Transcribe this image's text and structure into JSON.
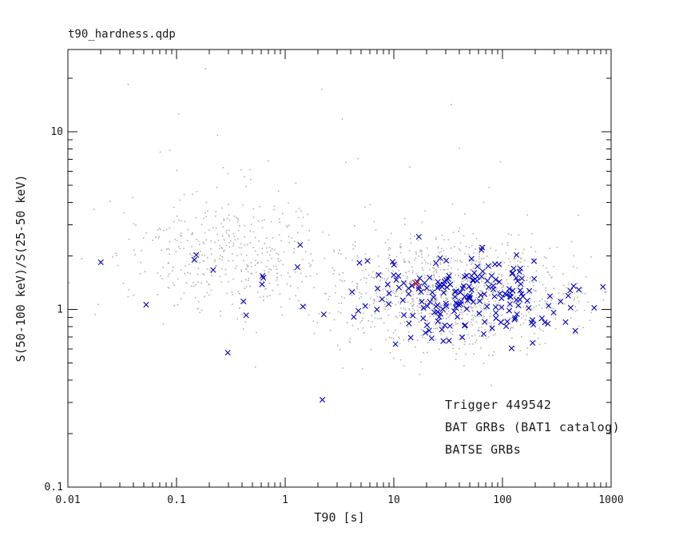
{
  "window": {
    "title": "t90_hardness.qdp"
  },
  "chart_data": {
    "type": "scatter",
    "title": "t90_hardness.qdp",
    "xlabel": "T90 [s]",
    "ylabel": "S(50-100 keV)/S(25-50 keV)",
    "xscale": "log",
    "yscale": "log",
    "xlim": [
      0.01,
      1000
    ],
    "ylim": [
      0.1,
      29
    ],
    "grid": false,
    "xticks": {
      "values": [
        0.01,
        0.1,
        1,
        10,
        100,
        1000
      ],
      "labels": [
        "0.01",
        "0.1",
        "1",
        "10",
        "100",
        "1000"
      ]
    },
    "yticks": {
      "values": [
        0.1,
        1,
        10
      ],
      "labels": [
        "0.1",
        "1",
        "10"
      ]
    },
    "legend": [
      {
        "label": "Trigger 449542",
        "color": "#d40000"
      },
      {
        "label": "BAT GRBs (BAT1 catalog)",
        "color": "#0000bf"
      },
      {
        "label": "BATSE GRBs",
        "color": "#b2b2b2"
      }
    ],
    "series": [
      {
        "name": "BATSE GRBs",
        "marker": "dot",
        "color": "#b2b2b2",
        "seed": 20090501,
        "clusters": [
          {
            "count": 1050,
            "logx_mean": 1.55,
            "logx_sigma": 0.55,
            "logy_mean": 0.09,
            "logy_sigma": 0.16
          },
          {
            "count": 400,
            "logx_mean": -0.55,
            "logx_sigma": 0.45,
            "logy_mean": 0.3,
            "logy_sigma": 0.17
          },
          {
            "count": 35,
            "logx_mean": 0.0,
            "logx_sigma": 0.9,
            "logy_mean": 0.62,
            "logy_sigma": 0.3
          }
        ],
        "points": []
      },
      {
        "name": "BAT GRBs (BAT1 catalog)",
        "marker": "x",
        "color": "#0000bf",
        "seed": 449542,
        "clusters": [
          {
            "count": 205,
            "logx_mean": 1.65,
            "logx_sigma": 0.5,
            "logy_mean": 0.07,
            "logy_sigma": 0.12
          },
          {
            "count": 14,
            "logx_mean": -0.7,
            "logx_sigma": 0.4,
            "logy_mean": 0.18,
            "logy_sigma": 0.15
          }
        ],
        "points": [
          [
            2.2,
            0.31
          ]
        ]
      },
      {
        "name": "Trigger 449542",
        "marker": "x",
        "color": "#d40000",
        "seed": 1,
        "clusters": [],
        "points": [
          [
            16,
            1.4
          ]
        ]
      }
    ]
  }
}
